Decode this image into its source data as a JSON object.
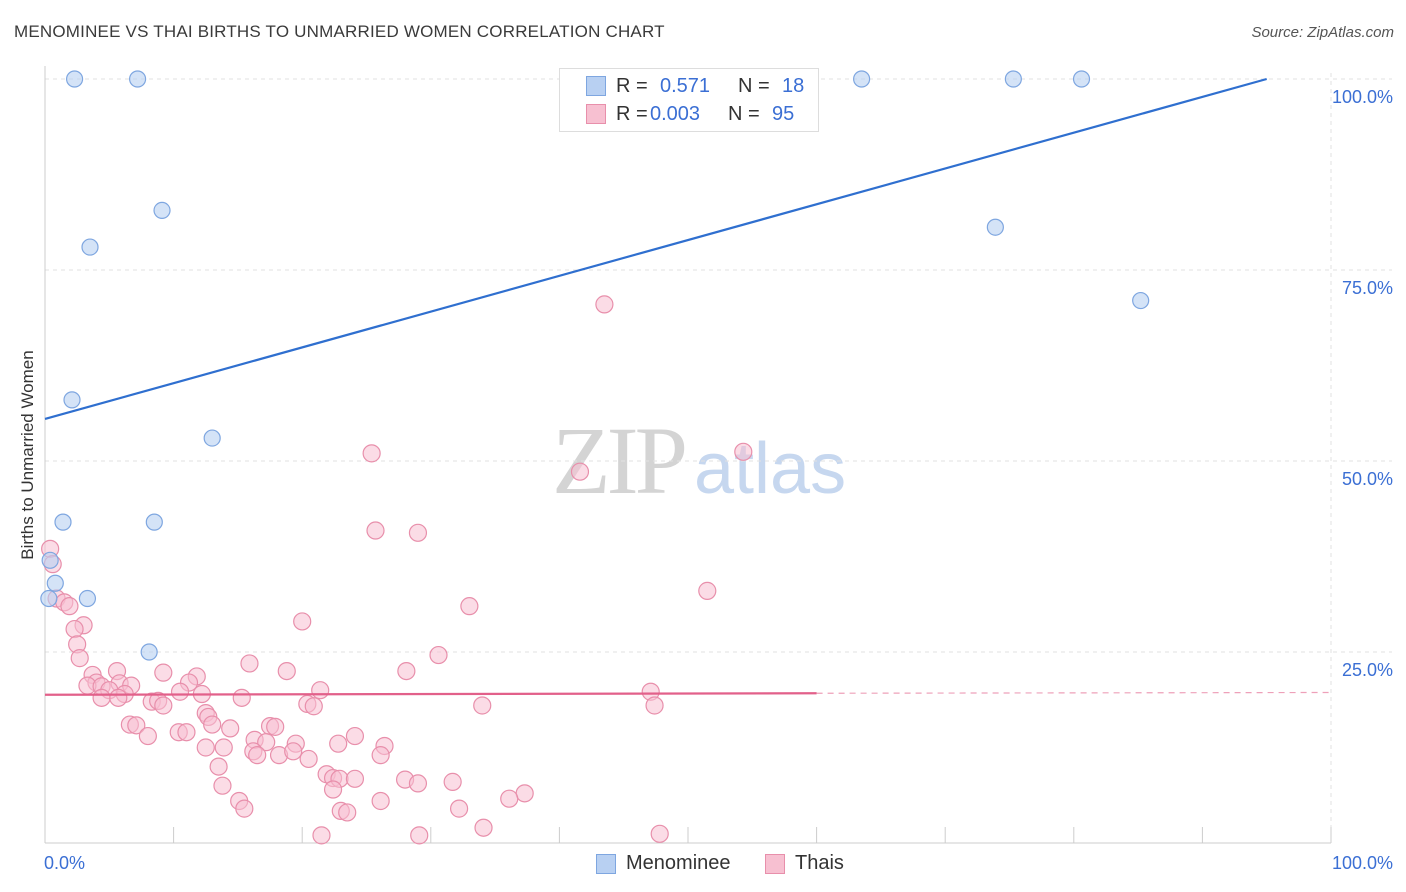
{
  "title": "MENOMINEE VS THAI BIRTHS TO UNMARRIED WOMEN CORRELATION CHART",
  "source": "Source: ZipAtlas.com",
  "watermark": {
    "zip": "ZIP",
    "atlas": "atlas"
  },
  "legend": {
    "rows": [
      {
        "r_label": "R =",
        "r_value": "0.571",
        "n_label": "N =",
        "n_value": "18"
      },
      {
        "r_label": "R =",
        "r_value": "0.003",
        "n_label": "N =",
        "n_value": "95"
      }
    ]
  },
  "bottom_legend": [
    "Menominee",
    "Thais"
  ],
  "colors": {
    "menominee_fill": "#b8d0f2",
    "menominee_stroke": "#7ea6e0",
    "menominee_line": "#2f6fcf",
    "thais_fill": "#f7c0d1",
    "thais_stroke": "#e88fab",
    "thais_line": "#e2608a",
    "grid": "#e2e2e2",
    "axis_label": "#3b6fd4"
  },
  "chart_data": {
    "type": "scatter",
    "title": "MENOMINEE VS THAI BIRTHS TO UNMARRIED WOMEN CORRELATION CHART",
    "xlabel": "",
    "ylabel": "Births to Unmarried Women",
    "xlim": [
      0,
      100
    ],
    "ylim": [
      0,
      100
    ],
    "x_tick_labels": [
      "0.0%",
      "100.0%"
    ],
    "y_tick_labels": [
      "25.0%",
      "50.0%",
      "75.0%",
      "100.0%"
    ],
    "series": [
      {
        "name": "Menominee",
        "points": [
          [
            2.3,
            100
          ],
          [
            7.2,
            100
          ],
          [
            63.5,
            100
          ],
          [
            75.3,
            100
          ],
          [
            80.6,
            100
          ],
          [
            9.1,
            82.8
          ],
          [
            3.5,
            78.0
          ],
          [
            73.9,
            80.6
          ],
          [
            85.2,
            71.0
          ],
          [
            2.1,
            58.0
          ],
          [
            13.0,
            53.0
          ],
          [
            1.4,
            42.0
          ],
          [
            8.5,
            42.0
          ],
          [
            0.4,
            37.0
          ],
          [
            0.8,
            34.0
          ],
          [
            0.3,
            32.0
          ],
          [
            3.3,
            32.0
          ],
          [
            8.1,
            25.0
          ]
        ],
        "trend": {
          "x": [
            0,
            95
          ],
          "y": [
            55.5,
            100
          ]
        }
      },
      {
        "name": "Thais",
        "points": [
          [
            43.5,
            70.5
          ],
          [
            54.3,
            51.2
          ],
          [
            25.4,
            51.0
          ],
          [
            41.6,
            48.6
          ],
          [
            25.7,
            40.9
          ],
          [
            29.0,
            40.6
          ],
          [
            0.4,
            38.5
          ],
          [
            0.6,
            36.5
          ],
          [
            51.5,
            33.0
          ],
          [
            0.9,
            32.0
          ],
          [
            1.5,
            31.5
          ],
          [
            1.9,
            31.0
          ],
          [
            33.0,
            31.0
          ],
          [
            20.0,
            29.0
          ],
          [
            3.0,
            28.5
          ],
          [
            2.3,
            28.0
          ],
          [
            2.5,
            26.0
          ],
          [
            30.6,
            24.6
          ],
          [
            2.7,
            24.2
          ],
          [
            15.9,
            23.5
          ],
          [
            18.8,
            22.5
          ],
          [
            28.1,
            22.5
          ],
          [
            5.6,
            22.5
          ],
          [
            3.7,
            22.0
          ],
          [
            9.2,
            22.3
          ],
          [
            11.8,
            21.8
          ],
          [
            4.0,
            21.0
          ],
          [
            5.8,
            20.9
          ],
          [
            6.7,
            20.6
          ],
          [
            11.2,
            21.0
          ],
          [
            3.3,
            20.6
          ],
          [
            4.4,
            20.5
          ],
          [
            5.0,
            20.0
          ],
          [
            6.2,
            19.5
          ],
          [
            21.4,
            20.0
          ],
          [
            10.5,
            19.8
          ],
          [
            12.2,
            19.5
          ],
          [
            4.4,
            19.0
          ],
          [
            5.7,
            19.0
          ],
          [
            15.3,
            19.0
          ],
          [
            47.1,
            19.8
          ],
          [
            8.3,
            18.5
          ],
          [
            8.8,
            18.6
          ],
          [
            9.2,
            18.0
          ],
          [
            20.4,
            18.2
          ],
          [
            20.9,
            17.9
          ],
          [
            34.0,
            18.0
          ],
          [
            47.4,
            18.0
          ],
          [
            12.5,
            17.0
          ],
          [
            12.7,
            16.5
          ],
          [
            13.0,
            15.5
          ],
          [
            6.6,
            15.5
          ],
          [
            7.1,
            15.4
          ],
          [
            14.4,
            15.0
          ],
          [
            17.5,
            15.3
          ],
          [
            17.9,
            15.2
          ],
          [
            10.4,
            14.5
          ],
          [
            11.0,
            14.5
          ],
          [
            8.0,
            14.0
          ],
          [
            24.1,
            14.0
          ],
          [
            16.3,
            13.5
          ],
          [
            17.2,
            13.2
          ],
          [
            19.5,
            13.0
          ],
          [
            22.8,
            13.0
          ],
          [
            12.5,
            12.5
          ],
          [
            13.9,
            12.5
          ],
          [
            16.2,
            12.0
          ],
          [
            16.5,
            11.5
          ],
          [
            18.2,
            11.5
          ],
          [
            19.3,
            12.0
          ],
          [
            26.4,
            12.7
          ],
          [
            26.1,
            11.5
          ],
          [
            20.5,
            11.0
          ],
          [
            13.5,
            10.0
          ],
          [
            21.9,
            9.0
          ],
          [
            22.4,
            8.5
          ],
          [
            22.9,
            8.4
          ],
          [
            24.1,
            8.4
          ],
          [
            28.0,
            8.3
          ],
          [
            29.0,
            7.8
          ],
          [
            31.7,
            8.0
          ],
          [
            13.8,
            7.5
          ],
          [
            22.4,
            7.0
          ],
          [
            37.3,
            6.5
          ],
          [
            36.1,
            5.8
          ],
          [
            26.1,
            5.5
          ],
          [
            15.1,
            5.5
          ],
          [
            15.5,
            4.5
          ],
          [
            23.0,
            4.2
          ],
          [
            23.5,
            4.0
          ],
          [
            32.2,
            4.5
          ],
          [
            34.1,
            2.0
          ],
          [
            21.5,
            1.0
          ],
          [
            29.1,
            1.0
          ],
          [
            47.8,
            1.2
          ]
        ],
        "trend": {
          "x": [
            0,
            60
          ],
          "y": [
            19.4,
            19.6
          ]
        },
        "trend_extension": {
          "x": [
            60,
            100
          ],
          "y": [
            19.6,
            19.7
          ]
        }
      }
    ]
  }
}
